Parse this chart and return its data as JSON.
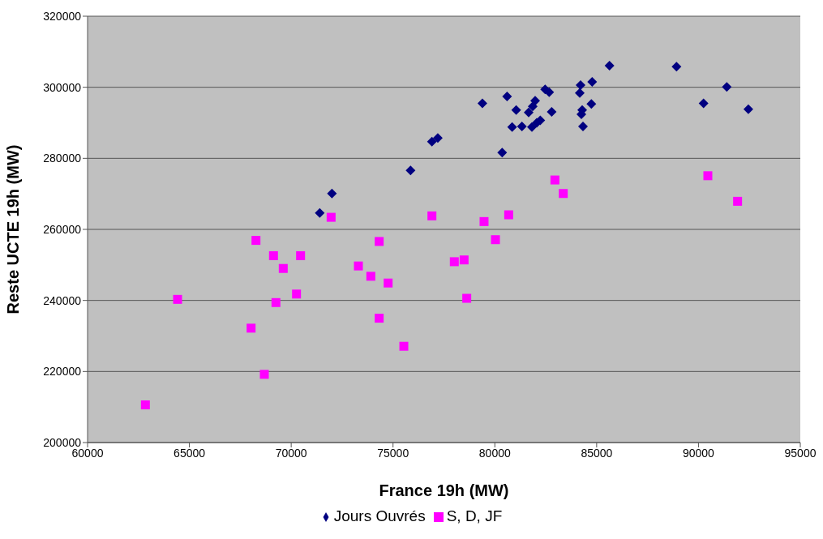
{
  "chart_data": {
    "type": "scatter",
    "xlabel": "France 19h (MW)",
    "ylabel": "Reste UCTE 19h (MW)",
    "xlim": [
      60000,
      95000
    ],
    "xticks": [
      60000,
      65000,
      70000,
      75000,
      80000,
      85000,
      90000,
      95000
    ],
    "ylim": [
      200000,
      320000
    ],
    "yticks": [
      200000,
      220000,
      240000,
      260000,
      280000,
      300000,
      320000
    ],
    "grid": "y",
    "legend": "bottom",
    "series": [
      {
        "name": "Jours Ouvrés",
        "color": "#000080",
        "marker": "diamond",
        "x": [
          71400,
          72000,
          75860,
          76910,
          77200,
          79390,
          80360,
          80600,
          80850,
          81050,
          81330,
          81660,
          81820,
          81860,
          81980,
          82060,
          82230,
          82470,
          82670,
          82790,
          84130,
          84170,
          84210,
          84250,
          84290,
          84330,
          84740,
          84780,
          85630,
          88920,
          90250,
          91390,
          92450
        ],
        "values": [
          264600,
          270100,
          276600,
          284700,
          285700,
          295500,
          281600,
          297400,
          288800,
          293600,
          289000,
          292900,
          288800,
          294600,
          296200,
          290000,
          290700,
          299400,
          298600,
          293100,
          null,
          298400,
          300600,
          292400,
          293600,
          289000,
          295300,
          301500,
          306100,
          305800,
          295500,
          300100,
          293800
        ]
      },
      {
        "name": "S, D, JF",
        "color": "#ff00ff",
        "marker": "square",
        "x": [
          62840,
          64420,
          68030,
          68270,
          68680,
          69130,
          69250,
          69610,
          70260,
          70460,
          71960,
          73300,
          73910,
          74320,
          74320,
          74760,
          75530,
          76910,
          78010,
          78490,
          78620,
          79470,
          80030,
          80680,
          82950,
          83360,
          90460,
          91920
        ],
        "values": [
          210600,
          240300,
          232200,
          256900,
          219200,
          252600,
          239400,
          249000,
          241800,
          252600,
          263400,
          249700,
          246800,
          256600,
          235000,
          244900,
          227100,
          263800,
          250900,
          251400,
          240600,
          262200,
          257100,
          264100,
          273900,
          270100,
          275100,
          267900
        ]
      }
    ]
  }
}
